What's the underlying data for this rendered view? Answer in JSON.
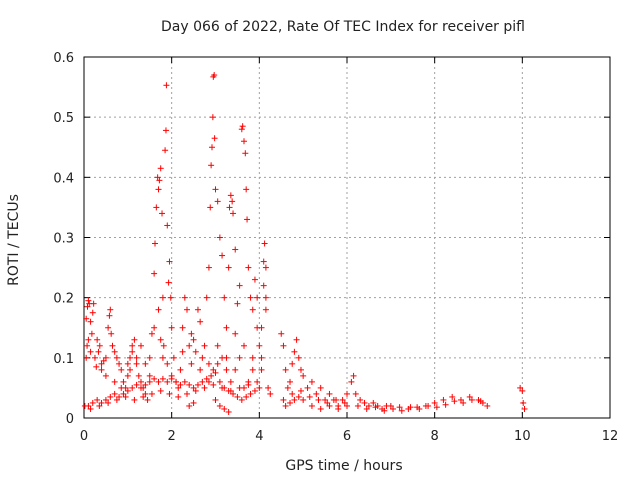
{
  "chart_data": {
    "type": "scatter",
    "title": "Day 066 of 2022, Rate Of TEC Index for receiver pifl",
    "xlabel": "GPS time / hours",
    "ylabel": "ROTI / TECUs",
    "xlim": [
      0,
      12
    ],
    "ylim": [
      0,
      0.6
    ],
    "xticks": [
      0,
      2,
      4,
      6,
      8,
      10,
      12
    ],
    "xtick_labels": [
      "0",
      "2",
      "4",
      "6",
      "8",
      "10",
      "12"
    ],
    "yticks": [
      0,
      0.1,
      0.2,
      0.3,
      0.4,
      0.5,
      0.6
    ],
    "ytick_labels": [
      "0",
      "0.1",
      "0.2",
      "0.3",
      "0.4",
      "0.5",
      "0.6"
    ],
    "grid": true,
    "marker": "+",
    "color": "#ff0000",
    "series": [
      {
        "name": "ROTI",
        "points": [
          [
            0.02,
            0.02
          ],
          [
            0.05,
            0.165
          ],
          [
            0.07,
            0.12
          ],
          [
            0.08,
            0.185
          ],
          [
            0.1,
            0.195
          ],
          [
            0.12,
            0.19
          ],
          [
            0.15,
            0.16
          ],
          [
            0.18,
            0.14
          ],
          [
            0.2,
            0.175
          ],
          [
            0.22,
            0.19
          ],
          [
            0.25,
            0.1
          ],
          [
            0.28,
            0.085
          ],
          [
            0.3,
            0.13
          ],
          [
            0.33,
            0.11
          ],
          [
            0.36,
            0.12
          ],
          [
            0.4,
            0.09
          ],
          [
            0.45,
            0.095
          ],
          [
            0.5,
            0.1
          ],
          [
            0.55,
            0.15
          ],
          [
            0.58,
            0.17
          ],
          [
            0.6,
            0.18
          ],
          [
            0.62,
            0.14
          ],
          [
            0.65,
            0.12
          ],
          [
            0.7,
            0.11
          ],
          [
            0.75,
            0.1
          ],
          [
            0.8,
            0.09
          ],
          [
            0.85,
            0.08
          ],
          [
            0.9,
            0.06
          ],
          [
            0.95,
            0.05
          ],
          [
            1.0,
            0.07
          ],
          [
            1.05,
            0.08
          ],
          [
            1.1,
            0.11
          ],
          [
            1.15,
            0.13
          ],
          [
            1.2,
            0.09
          ],
          [
            1.25,
            0.07
          ],
          [
            1.3,
            0.06
          ],
          [
            1.35,
            0.05
          ],
          [
            1.4,
            0.04
          ],
          [
            1.45,
            0.03
          ],
          [
            1.5,
            0.1
          ],
          [
            1.55,
            0.14
          ],
          [
            1.6,
            0.24
          ],
          [
            1.62,
            0.29
          ],
          [
            1.65,
            0.35
          ],
          [
            1.68,
            0.4
          ],
          [
            1.7,
            0.38
          ],
          [
            1.72,
            0.395
          ],
          [
            1.75,
            0.415
          ],
          [
            1.78,
            0.34
          ],
          [
            1.8,
            0.2
          ],
          [
            1.82,
            0.12
          ],
          [
            1.85,
            0.445
          ],
          [
            1.87,
            0.478
          ],
          [
            1.88,
            0.553
          ],
          [
            1.9,
            0.32
          ],
          [
            1.93,
            0.225
          ],
          [
            1.95,
            0.26
          ],
          [
            1.98,
            0.2
          ],
          [
            2.0,
            0.15
          ],
          [
            2.05,
            0.1
          ],
          [
            2.1,
            0.06
          ],
          [
            2.15,
            0.05
          ],
          [
            2.2,
            0.08
          ],
          [
            2.25,
            0.15
          ],
          [
            2.3,
            0.2
          ],
          [
            2.35,
            0.18
          ],
          [
            2.4,
            0.12
          ],
          [
            2.45,
            0.09
          ],
          [
            2.5,
            0.13
          ],
          [
            2.55,
            0.11
          ],
          [
            2.6,
            0.18
          ],
          [
            2.65,
            0.16
          ],
          [
            2.7,
            0.1
          ],
          [
            2.75,
            0.12
          ],
          [
            2.8,
            0.2
          ],
          [
            2.85,
            0.25
          ],
          [
            2.88,
            0.35
          ],
          [
            2.9,
            0.42
          ],
          [
            2.92,
            0.45
          ],
          [
            2.94,
            0.5
          ],
          [
            2.95,
            0.567
          ],
          [
            2.97,
            0.57
          ],
          [
            2.98,
            0.465
          ],
          [
            3.0,
            0.38
          ],
          [
            3.05,
            0.36
          ],
          [
            3.1,
            0.3
          ],
          [
            3.15,
            0.27
          ],
          [
            3.2,
            0.2
          ],
          [
            3.25,
            0.15
          ],
          [
            3.3,
            0.25
          ],
          [
            3.32,
            0.35
          ],
          [
            3.35,
            0.37
          ],
          [
            3.38,
            0.36
          ],
          [
            3.4,
            0.34
          ],
          [
            3.45,
            0.28
          ],
          [
            3.5,
            0.19
          ],
          [
            3.55,
            0.22
          ],
          [
            3.6,
            0.48
          ],
          [
            3.62,
            0.485
          ],
          [
            3.65,
            0.46
          ],
          [
            3.68,
            0.44
          ],
          [
            3.7,
            0.38
          ],
          [
            3.72,
            0.33
          ],
          [
            3.75,
            0.25
          ],
          [
            3.8,
            0.2
          ],
          [
            3.85,
            0.18
          ],
          [
            3.9,
            0.23
          ],
          [
            3.95,
            0.2
          ],
          [
            4.0,
            0.12
          ],
          [
            4.05,
            0.08
          ],
          [
            4.1,
            0.26
          ],
          [
            4.12,
            0.29
          ],
          [
            4.15,
            0.25
          ],
          [
            4.2,
            0.05
          ],
          [
            4.25,
            0.04
          ],
          [
            4.5,
            0.14
          ],
          [
            4.55,
            0.12
          ],
          [
            4.6,
            0.08
          ],
          [
            4.65,
            0.05
          ],
          [
            4.7,
            0.06
          ],
          [
            4.75,
            0.09
          ],
          [
            4.8,
            0.11
          ],
          [
            4.85,
            0.13
          ],
          [
            4.9,
            0.1
          ],
          [
            4.95,
            0.08
          ],
          [
            5.0,
            0.07
          ],
          [
            5.1,
            0.05
          ],
          [
            5.2,
            0.06
          ],
          [
            5.3,
            0.04
          ],
          [
            5.4,
            0.05
          ],
          [
            5.5,
            0.03
          ],
          [
            5.6,
            0.04
          ],
          [
            5.7,
            0.03
          ],
          [
            5.8,
            0.02
          ],
          [
            5.9,
            0.03
          ],
          [
            6.0,
            0.04
          ],
          [
            6.1,
            0.06
          ],
          [
            6.15,
            0.07
          ],
          [
            6.2,
            0.04
          ],
          [
            6.3,
            0.03
          ],
          [
            6.4,
            0.025
          ],
          [
            6.5,
            0.02
          ],
          [
            6.6,
            0.025
          ],
          [
            6.7,
            0.02
          ],
          [
            6.8,
            0.015
          ],
          [
            6.9,
            0.02
          ],
          [
            7.0,
            0.02
          ],
          [
            7.2,
            0.018
          ],
          [
            7.4,
            0.015
          ],
          [
            7.6,
            0.018
          ],
          [
            7.8,
            0.02
          ],
          [
            8.0,
            0.025
          ],
          [
            8.2,
            0.03
          ],
          [
            8.4,
            0.035
          ],
          [
            8.6,
            0.03
          ],
          [
            8.8,
            0.035
          ],
          [
            9.0,
            0.03
          ],
          [
            9.1,
            0.025
          ],
          [
            9.2,
            0.02
          ],
          [
            9.95,
            0.05
          ],
          [
            10.0,
            0.045
          ],
          [
            10.02,
            0.025
          ],
          [
            10.05,
            0.015
          ],
          [
            0.1,
            0.02
          ],
          [
            0.2,
            0.025
          ],
          [
            0.3,
            0.03
          ],
          [
            0.4,
            0.025
          ],
          [
            0.5,
            0.03
          ],
          [
            0.6,
            0.035
          ],
          [
            0.7,
            0.04
          ],
          [
            0.8,
            0.035
          ],
          [
            0.9,
            0.04
          ],
          [
            1.0,
            0.045
          ],
          [
            1.1,
            0.05
          ],
          [
            1.2,
            0.055
          ],
          [
            1.3,
            0.05
          ],
          [
            1.4,
            0.055
          ],
          [
            1.5,
            0.06
          ],
          [
            1.6,
            0.065
          ],
          [
            1.7,
            0.06
          ],
          [
            1.8,
            0.065
          ],
          [
            1.9,
            0.06
          ],
          [
            2.0,
            0.065
          ],
          [
            2.1,
            0.06
          ],
          [
            2.2,
            0.055
          ],
          [
            2.3,
            0.06
          ],
          [
            2.4,
            0.055
          ],
          [
            2.5,
            0.05
          ],
          [
            2.6,
            0.055
          ],
          [
            2.7,
            0.06
          ],
          [
            2.8,
            0.065
          ],
          [
            2.9,
            0.07
          ],
          [
            3.0,
            0.075
          ],
          [
            3.1,
            0.06
          ],
          [
            3.2,
            0.05
          ],
          [
            3.3,
            0.045
          ],
          [
            3.4,
            0.04
          ],
          [
            3.5,
            0.035
          ],
          [
            3.6,
            0.03
          ],
          [
            3.7,
            0.035
          ],
          [
            3.8,
            0.04
          ],
          [
            3.9,
            0.045
          ],
          [
            4.0,
            0.05
          ],
          [
            4.6,
            0.02
          ],
          [
            4.7,
            0.025
          ],
          [
            4.8,
            0.03
          ],
          [
            4.9,
            0.035
          ],
          [
            5.0,
            0.03
          ],
          [
            5.2,
            0.02
          ],
          [
            5.4,
            0.015
          ],
          [
            5.6,
            0.02
          ],
          [
            5.8,
            0.015
          ],
          [
            6.0,
            0.02
          ],
          [
            0.15,
            0.015
          ],
          [
            0.35,
            0.02
          ],
          [
            0.55,
            0.025
          ],
          [
            0.75,
            0.03
          ],
          [
            0.95,
            0.035
          ],
          [
            1.15,
            0.03
          ],
          [
            1.35,
            0.035
          ],
          [
            1.55,
            0.04
          ],
          [
            1.75,
            0.045
          ],
          [
            1.95,
            0.04
          ],
          [
            2.15,
            0.035
          ],
          [
            2.35,
            0.04
          ],
          [
            2.55,
            0.045
          ],
          [
            2.75,
            0.05
          ],
          [
            2.95,
            0.055
          ],
          [
            3.15,
            0.05
          ],
          [
            3.35,
            0.045
          ],
          [
            3.55,
            0.05
          ],
          [
            3.75,
            0.055
          ],
          [
            3.95,
            0.06
          ],
          [
            4.55,
            0.03
          ],
          [
            4.75,
            0.04
          ],
          [
            4.95,
            0.045
          ],
          [
            5.15,
            0.035
          ],
          [
            5.35,
            0.03
          ],
          [
            5.55,
            0.025
          ],
          [
            5.75,
            0.03
          ],
          [
            5.95,
            0.025
          ],
          [
            6.25,
            0.02
          ],
          [
            6.45,
            0.015
          ],
          [
            6.65,
            0.018
          ],
          [
            6.85,
            0.012
          ],
          [
            7.05,
            0.015
          ],
          [
            7.25,
            0.012
          ],
          [
            7.45,
            0.018
          ],
          [
            7.65,
            0.015
          ],
          [
            7.85,
            0.02
          ],
          [
            8.05,
            0.018
          ],
          [
            8.25,
            0.022
          ],
          [
            8.45,
            0.028
          ],
          [
            8.65,
            0.025
          ],
          [
            8.85,
            0.03
          ],
          [
            9.05,
            0.028
          ],
          [
            1.2,
            0.1
          ],
          [
            1.3,
            0.12
          ],
          [
            1.4,
            0.09
          ],
          [
            1.5,
            0.07
          ],
          [
            2.25,
            0.11
          ],
          [
            2.45,
            0.14
          ],
          [
            2.65,
            0.08
          ],
          [
            2.85,
            0.09
          ],
          [
            3.05,
            0.12
          ],
          [
            3.25,
            0.1
          ],
          [
            3.45,
            0.14
          ],
          [
            3.65,
            0.12
          ],
          [
            3.85,
            0.1
          ],
          [
            4.05,
            0.15
          ],
          [
            4.15,
            0.18
          ],
          [
            3.0,
            0.03
          ],
          [
            3.1,
            0.02
          ],
          [
            3.2,
            0.015
          ],
          [
            3.3,
            0.01
          ],
          [
            2.4,
            0.02
          ],
          [
            2.5,
            0.025
          ],
          [
            0.05,
            0.1
          ],
          [
            0.1,
            0.13
          ],
          [
            0.15,
            0.11
          ],
          [
            0.4,
            0.08
          ],
          [
            0.5,
            0.07
          ],
          [
            0.7,
            0.06
          ],
          [
            0.85,
            0.05
          ],
          [
            1.0,
            0.09
          ],
          [
            1.05,
            0.1
          ],
          [
            1.1,
            0.12
          ],
          [
            1.6,
            0.15
          ],
          [
            1.7,
            0.18
          ],
          [
            1.75,
            0.13
          ],
          [
            1.8,
            0.1
          ],
          [
            1.9,
            0.09
          ],
          [
            2.0,
            0.07
          ],
          [
            4.1,
            0.22
          ],
          [
            4.15,
            0.2
          ],
          [
            4.05,
            0.1
          ],
          [
            3.95,
            0.15
          ],
          [
            3.85,
            0.08
          ],
          [
            3.75,
            0.06
          ],
          [
            3.65,
            0.05
          ],
          [
            3.55,
            0.1
          ],
          [
            3.45,
            0.08
          ],
          [
            3.35,
            0.06
          ],
          [
            3.25,
            0.08
          ],
          [
            3.15,
            0.1
          ],
          [
            3.05,
            0.09
          ],
          [
            2.95,
            0.08
          ],
          [
            2.85,
            0.06
          ]
        ]
      }
    ]
  }
}
